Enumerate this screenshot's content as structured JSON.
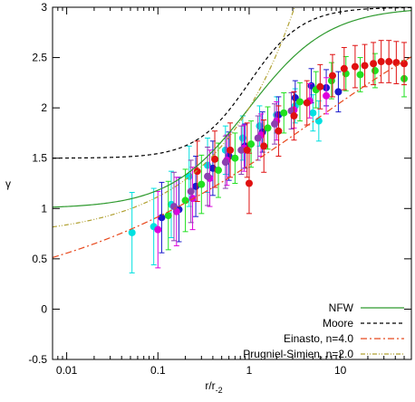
{
  "chart_data": {
    "type": "scatter",
    "xscale": "log",
    "xlim": [
      0.007,
      60
    ],
    "ylim": [
      -0.5,
      3
    ],
    "xlabel_main": "r/r",
    "xlabel_sub": "-2",
    "ylabel": "γ",
    "x_ticks": [
      {
        "v": 0.01,
        "label": "0.01"
      },
      {
        "v": 0.1,
        "label": "0.1"
      },
      {
        "v": 1,
        "label": "1"
      },
      {
        "v": 10,
        "label": "10"
      }
    ],
    "y_ticks": [
      {
        "v": -0.5,
        "label": "-0.5"
      },
      {
        "v": 0,
        "label": "0"
      },
      {
        "v": 0.5,
        "label": "0.5"
      },
      {
        "v": 1,
        "label": "1"
      },
      {
        "v": 1.5,
        "label": "1.5"
      },
      {
        "v": 2,
        "label": "2"
      },
      {
        "v": 2.5,
        "label": "2.5"
      },
      {
        "v": 3,
        "label": "3"
      }
    ],
    "legend_position": "bottom-right",
    "models": [
      {
        "name": "NFW",
        "color": "#2e9a2e",
        "dash": "",
        "kind": "nfw"
      },
      {
        "name": "Moore",
        "color": "#000000",
        "dash": "4,3",
        "kind": "moore"
      },
      {
        "name": "Einasto, n=4.0",
        "color": "#e8491d",
        "dash": "7,3,2,3",
        "kind": "einasto",
        "n": 4.0
      },
      {
        "name": "Prugniel-Simien, n=2.0",
        "color": "#b0a030",
        "dash": "5,2,1,2,1,2",
        "kind": "ps",
        "n": 2.0
      }
    ],
    "datasets": [
      {
        "color": "#00e0e0",
        "points": [
          [
            0.052,
            0.76,
            0.4
          ],
          [
            0.09,
            0.82,
            0.38
          ],
          [
            0.14,
            1.04,
            0.33
          ],
          [
            0.22,
            1.32,
            0.3
          ],
          [
            0.35,
            1.43,
            0.27
          ],
          [
            0.55,
            1.58,
            0.24
          ],
          [
            0.85,
            1.7,
            0.22
          ],
          [
            1.3,
            1.82,
            0.2
          ],
          [
            2.0,
            1.93,
            0.18
          ],
          [
            3.2,
            2.02,
            0.17
          ],
          [
            5.0,
            1.95,
            0.18
          ],
          [
            5.8,
            1.87,
            0.2
          ]
        ]
      },
      {
        "color": "#1a1acc",
        "points": [
          [
            0.11,
            0.91,
            0.35
          ],
          [
            0.17,
            0.99,
            0.32
          ],
          [
            0.26,
            1.22,
            0.3
          ],
          [
            0.4,
            1.4,
            0.27
          ],
          [
            0.6,
            1.52,
            0.24
          ],
          [
            0.9,
            1.62,
            0.22
          ],
          [
            1.4,
            1.76,
            0.2
          ],
          [
            2.1,
            1.93,
            0.18
          ],
          [
            3.2,
            2.1,
            0.17
          ],
          [
            4.8,
            2.22,
            0.17
          ],
          [
            7.0,
            2.2,
            0.18
          ],
          [
            9.5,
            2.16,
            0.2
          ]
        ]
      },
      {
        "color": "#dd00dd",
        "points": [
          [
            0.1,
            0.79,
            0.38
          ],
          [
            0.16,
            0.97,
            0.34
          ],
          [
            0.24,
            1.1,
            0.31
          ],
          [
            0.37,
            1.3,
            0.28
          ],
          [
            0.57,
            1.48,
            0.25
          ],
          [
            0.88,
            1.6,
            0.23
          ],
          [
            1.35,
            1.73,
            0.21
          ],
          [
            2.0,
            1.87,
            0.19
          ],
          [
            3.1,
            1.98,
            0.18
          ],
          [
            4.6,
            2.07,
            0.17
          ],
          [
            7.0,
            2.12,
            0.18
          ]
        ]
      },
      {
        "color": "#20e020",
        "points": [
          [
            0.13,
            0.93,
            0.34
          ],
          [
            0.2,
            1.08,
            0.31
          ],
          [
            0.3,
            1.24,
            0.29
          ],
          [
            0.46,
            1.38,
            0.27
          ],
          [
            0.7,
            1.5,
            0.25
          ],
          [
            1.05,
            1.64,
            0.23
          ],
          [
            1.6,
            1.8,
            0.21
          ],
          [
            2.4,
            1.95,
            0.2
          ],
          [
            3.6,
            2.06,
            0.19
          ],
          [
            5.4,
            2.18,
            0.18
          ],
          [
            8.0,
            2.27,
            0.18
          ],
          [
            11.5,
            2.34,
            0.17
          ],
          [
            16.5,
            2.33,
            0.17
          ],
          [
            24,
            2.37,
            0.17
          ],
          [
            50,
            2.29,
            0.18
          ]
        ]
      },
      {
        "color": "#8b3fb0",
        "points": [
          [
            0.15,
            1.02,
            0.34
          ],
          [
            0.23,
            1.17,
            0.31
          ],
          [
            0.35,
            1.32,
            0.29
          ],
          [
            0.55,
            1.46,
            0.26
          ],
          [
            0.82,
            1.58,
            0.24
          ],
          [
            1.25,
            1.7,
            0.22
          ],
          [
            1.9,
            1.84,
            0.2
          ],
          [
            2.9,
            1.97,
            0.18
          ]
        ]
      },
      {
        "color": "#e01010",
        "points": [
          [
            0.27,
            1.37,
            0.3
          ],
          [
            0.42,
            1.49,
            0.28
          ],
          [
            0.62,
            1.58,
            0.27
          ],
          [
            0.95,
            1.58,
            0.27
          ],
          [
            1.0,
            1.25,
            0.3
          ],
          [
            1.45,
            1.62,
            0.26
          ],
          [
            2.1,
            1.77,
            0.25
          ],
          [
            3.1,
            1.92,
            0.24
          ],
          [
            4.3,
            2.05,
            0.22
          ],
          [
            6.0,
            2.21,
            0.22
          ],
          [
            8.2,
            2.32,
            0.21
          ],
          [
            11.0,
            2.39,
            0.21
          ],
          [
            14.5,
            2.41,
            0.21
          ],
          [
            18.5,
            2.42,
            0.21
          ],
          [
            23,
            2.44,
            0.21
          ],
          [
            28,
            2.46,
            0.21
          ],
          [
            34,
            2.46,
            0.21
          ],
          [
            41,
            2.45,
            0.21
          ],
          [
            50,
            2.44,
            0.21
          ]
        ]
      }
    ]
  }
}
